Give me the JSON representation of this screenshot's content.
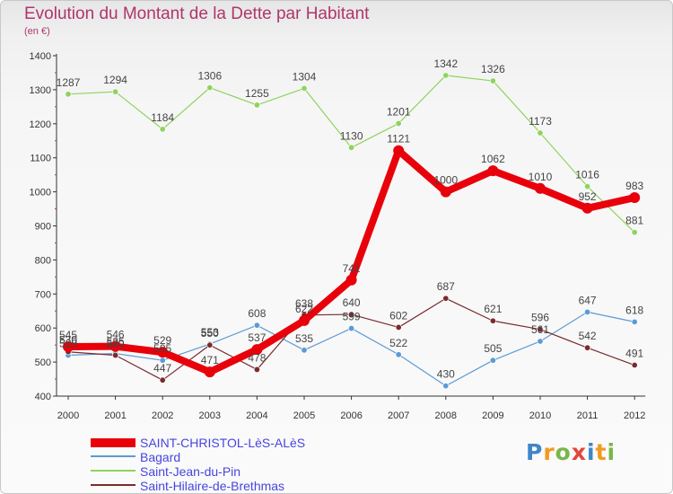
{
  "chart_data": {
    "type": "line",
    "title": "Evolution du Montant de la Dette par Habitant",
    "subtitle": "(en €)",
    "x": [
      "2000",
      "2001",
      "2002",
      "2003",
      "2004",
      "2005",
      "2006",
      "2007",
      "2008",
      "2009",
      "2010",
      "2011",
      "2012"
    ],
    "yticks": [
      "400",
      "500",
      "600",
      "700",
      "800",
      "900",
      "1000",
      "1100",
      "1200",
      "1300",
      "1400"
    ],
    "ylim": [
      400,
      1400
    ],
    "grid": false,
    "legend_position": "bottom-left",
    "series": [
      {
        "name": "SAINT-CHRISTOL-LèS-ALèS",
        "color": "#e8000b",
        "values": [
          545,
          546,
          529,
          471,
          537,
          622,
          741,
          1121,
          1000,
          1062,
          1010,
          952,
          983
        ],
        "labels": [
          "545",
          "546",
          "529",
          "471",
          "537",
          "622",
          "741",
          "1121",
          "1000",
          "1062",
          "1010",
          "952",
          "983"
        ]
      },
      {
        "name": "Bagard",
        "color": "#5b9bd5",
        "values": [
          520,
          525,
          505,
          553,
          608,
          535,
          599,
          522,
          430,
          505,
          561,
          647,
          618
        ],
        "labels": [
          "520",
          "525",
          "505",
          "553",
          "608",
          "535",
          "599",
          "522",
          "430",
          "505",
          "561",
          "647",
          "618"
        ]
      },
      {
        "name": "Saint-Jean-du-Pin",
        "color": "#8fd35f",
        "values": [
          1287,
          1294,
          1184,
          1306,
          1255,
          1304,
          1130,
          1201,
          1342,
          1326,
          1173,
          1016,
          881
        ],
        "labels": [
          "1287",
          "1294",
          "1184",
          "1306",
          "1255",
          "1304",
          "1130",
          "1201",
          "1342",
          "1326",
          "1173",
          "1016",
          "881"
        ]
      },
      {
        "name": "Saint-Hilaire-de-Brethmas",
        "color": "#7a2b2e",
        "values": [
          530,
          520,
          447,
          550,
          478,
          638,
          640,
          602,
          687,
          621,
          596,
          542,
          491
        ],
        "labels": [
          "530",
          "520",
          "447",
          "550",
          "478",
          "638",
          "640",
          "602",
          "687",
          "621",
          "596",
          "542",
          "491"
        ]
      }
    ]
  },
  "brand": {
    "letters": [
      "P",
      "r",
      "o",
      "x",
      "i",
      "t",
      "i"
    ]
  }
}
